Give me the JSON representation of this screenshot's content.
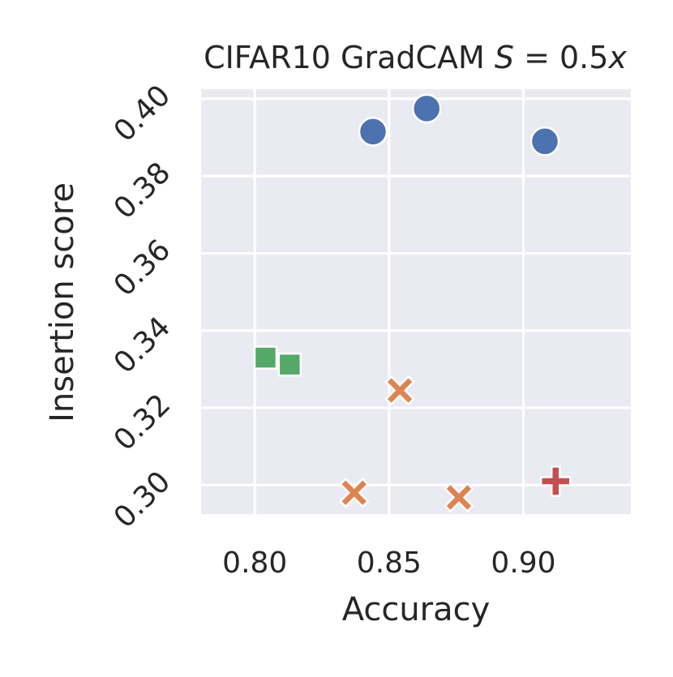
{
  "chart_data": {
    "type": "scatter",
    "title": "CIFAR10 GradCAM S = 0.5x",
    "title_parts": {
      "prefix": "CIFAR10 GradCAM ",
      "var": "S",
      "eq": " = 0.5",
      "var2": "x"
    },
    "xlabel": "Accuracy",
    "ylabel": "Insertion score",
    "xlim": [
      0.78,
      0.94
    ],
    "ylim": [
      0.2925,
      0.4025
    ],
    "xticks": [
      0.8,
      0.85,
      0.9
    ],
    "xtick_labels": [
      "0.80",
      "0.85",
      "0.90"
    ],
    "yticks": [
      0.3,
      0.32,
      0.34,
      0.36,
      0.38,
      0.4
    ],
    "ytick_labels": [
      "0.30",
      "0.32",
      "0.34",
      "0.36",
      "0.38",
      "0.40"
    ],
    "grid": true,
    "series": [
      {
        "marker": "circle",
        "color": "#4c72b0",
        "points": [
          {
            "x": 0.844,
            "y": 0.3915
          },
          {
            "x": 0.864,
            "y": 0.3975
          },
          {
            "x": 0.908,
            "y": 0.389
          }
        ]
      },
      {
        "marker": "x",
        "color": "#dd8452",
        "points": [
          {
            "x": 0.854,
            "y": 0.3245
          },
          {
            "x": 0.837,
            "y": 0.298
          },
          {
            "x": 0.876,
            "y": 0.2968
          }
        ]
      },
      {
        "marker": "square",
        "color": "#55a868",
        "points": [
          {
            "x": 0.804,
            "y": 0.333
          },
          {
            "x": 0.813,
            "y": 0.3312
          }
        ]
      },
      {
        "marker": "plus",
        "color": "#c44e52",
        "points": [
          {
            "x": 0.912,
            "y": 0.301
          }
        ]
      }
    ]
  }
}
